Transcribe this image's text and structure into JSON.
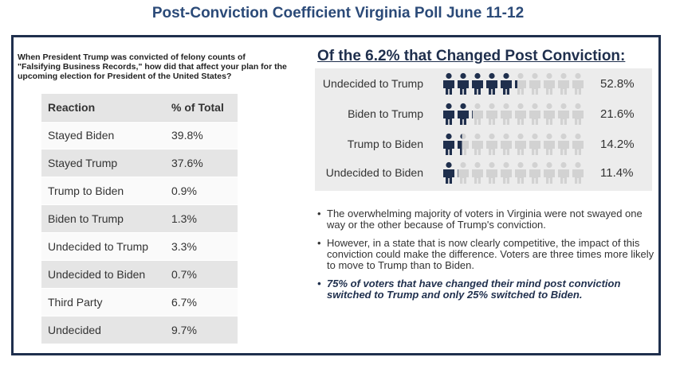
{
  "title": "Post-Conviction Coefficient Virginia Poll June 11-12",
  "question": "When President Trump was convicted of felony counts of \"Falsifying Business Records,\" how did that affect your plan for the upcoming election for President of the United States?",
  "table": {
    "headers": [
      "Reaction",
      "% of Total"
    ],
    "rows": [
      {
        "label": "Stayed Biden",
        "value": "39.8%"
      },
      {
        "label": "Stayed Trump",
        "value": "37.6%"
      },
      {
        "label": "Trump to Biden",
        "value": "0.9%"
      },
      {
        "label": "Biden to Trump",
        "value": "1.3%"
      },
      {
        "label": "Undecided to Trump",
        "value": "3.3%"
      },
      {
        "label": "Undecided to Biden",
        "value": "0.7%"
      },
      {
        "label": "Third Party",
        "value": "6.7%"
      },
      {
        "label": "Undecided",
        "value": "9.7%"
      }
    ]
  },
  "chart_data": {
    "type": "pictograph",
    "title": "Of the 6.2% that Changed Post Conviction:",
    "icons_per_row": 10,
    "categories": [
      "Undecided to Trump",
      "Biden to Trump",
      "Trump to Biden",
      "Undecided to Biden"
    ],
    "values": [
      52.8,
      21.6,
      14.2,
      11.4
    ],
    "value_labels": [
      "52.8%",
      "21.6%",
      "14.2%",
      "11.4%"
    ],
    "filled_color": "#1f2f4d",
    "empty_color": "#d2d2d2"
  },
  "bullets": [
    "The overwhelming majority of voters in Virginia were not swayed one way or the other because of Trump's conviction.",
    "However, in a state that is now clearly competitive, the impact of this conviction could make the difference. Voters are three times more likely to move to Trump than to Biden.",
    "75% of voters that have changed their mind post conviction switched to Trump and only 25% switched to Biden."
  ],
  "bullet_glyph": "•"
}
